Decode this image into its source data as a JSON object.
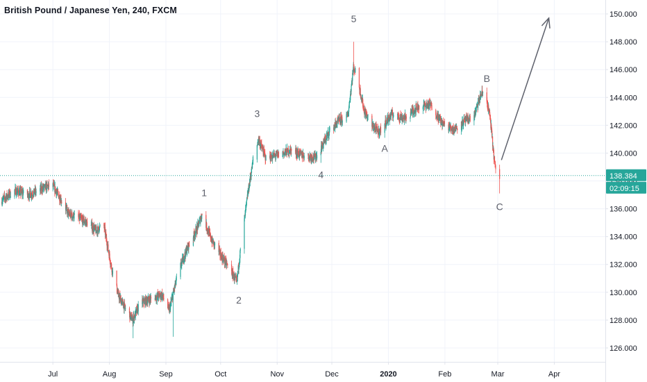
{
  "header": {
    "title": "British Pound / Japanese Yen, 240, FXCM"
  },
  "colors": {
    "up": "#26a69a",
    "down": "#ef5350",
    "grid": "#f0f3fa",
    "axis_line": "#e0e3eb",
    "last_price": "#26a69a",
    "arrow": "#5d606b",
    "label": "#5d606b"
  },
  "chart_data": {
    "type": "candlestick",
    "y_axis": {
      "ticks": [
        "126.000",
        "128.000",
        "130.000",
        "132.000",
        "134.000",
        "136.000",
        "138.000",
        "140.000",
        "142.000",
        "144.000",
        "146.000",
        "148.000",
        "150.000"
      ],
      "ylim": [
        125.0,
        151.0
      ]
    },
    "x_axis": {
      "ticks": [
        "Jul",
        "Aug",
        "Sep",
        "Oct",
        "Nov",
        "Dec",
        "2020",
        "Feb",
        "Mar",
        "Apr"
      ],
      "bold_ticks": [
        "2020"
      ],
      "tick_dates": [
        "2019-07-01",
        "2019-08-01",
        "2019-09-01",
        "2019-10-01",
        "2019-11-01",
        "2019-12-01",
        "2020-01-01",
        "2020-02-01",
        "2020-03-01",
        "2020-04-01"
      ],
      "xlim": [
        "2019-06-02",
        "2020-04-29"
      ]
    },
    "last_price": {
      "value": 138.384,
      "label": "138.384",
      "countdown": "02:09:15"
    },
    "price_path": [
      [
        "2019-06-02",
        136.5
      ],
      [
        "2019-06-10",
        137.3
      ],
      [
        "2019-06-18",
        137.0
      ],
      [
        "2019-06-26",
        137.5
      ],
      [
        "2019-07-01",
        137.7
      ],
      [
        "2019-07-05",
        136.8
      ],
      [
        "2019-07-10",
        135.6
      ],
      [
        "2019-07-16",
        135.3
      ],
      [
        "2019-07-21",
        134.9
      ],
      [
        "2019-07-25",
        134.4
      ],
      [
        "2019-07-29",
        134.9
      ],
      [
        "2019-08-02",
        132.0
      ],
      [
        "2019-08-06",
        129.8
      ],
      [
        "2019-08-10",
        128.8
      ],
      [
        "2019-08-14",
        128.0
      ],
      [
        "2019-08-18",
        129.2
      ],
      [
        "2019-08-25",
        129.6
      ],
      [
        "2019-08-30",
        129.8
      ],
      [
        "2019-09-03",
        128.7
      ],
      [
        "2019-09-08",
        131.5
      ],
      [
        "2019-09-13",
        133.2
      ],
      [
        "2019-09-18",
        134.5
      ],
      [
        "2019-09-21",
        135.6
      ],
      [
        "2019-09-26",
        133.8
      ],
      [
        "2019-10-02",
        132.5
      ],
      [
        "2019-10-07",
        131.5
      ],
      [
        "2019-10-10",
        130.7
      ],
      [
        "2019-10-12",
        133.0
      ],
      [
        "2019-10-16",
        137.0
      ],
      [
        "2019-10-19",
        139.5
      ],
      [
        "2019-10-22",
        141.0
      ],
      [
        "2019-10-26",
        139.6
      ],
      [
        "2019-11-02",
        139.9
      ],
      [
        "2019-11-09",
        140.2
      ],
      [
        "2019-11-16",
        139.8
      ],
      [
        "2019-11-22",
        139.7
      ],
      [
        "2019-11-25",
        140.3
      ],
      [
        "2019-11-30",
        141.6
      ],
      [
        "2019-12-05",
        142.3
      ],
      [
        "2019-12-10",
        142.7
      ],
      [
        "2019-12-13",
        146.2
      ],
      [
        "2019-12-15",
        145.5
      ],
      [
        "2019-12-19",
        143.0
      ],
      [
        "2019-12-23",
        142.0
      ],
      [
        "2019-12-27",
        141.5
      ],
      [
        "2020-01-03",
        142.8
      ],
      [
        "2020-01-10",
        142.5
      ],
      [
        "2020-01-17",
        143.3
      ],
      [
        "2020-01-24",
        143.5
      ],
      [
        "2020-01-31",
        142.1
      ],
      [
        "2020-02-06",
        141.7
      ],
      [
        "2020-02-12",
        142.3
      ],
      [
        "2020-02-17",
        142.6
      ],
      [
        "2020-02-21",
        144.2
      ],
      [
        "2020-02-23",
        144.5
      ],
      [
        "2020-02-26",
        142.5
      ],
      [
        "2020-02-28",
        139.8
      ],
      [
        "2020-03-01",
        137.6
      ],
      [
        "2020-03-02",
        138.3
      ]
    ],
    "extremes": [
      [
        "2019-07-01",
        137.9
      ],
      [
        "2019-08-14",
        126.7
      ],
      [
        "2019-09-05",
        126.8
      ],
      [
        "2019-09-21",
        135.9
      ],
      [
        "2019-10-10",
        130.6
      ],
      [
        "2019-10-20",
        141.4
      ],
      [
        "2019-11-25",
        139.3
      ],
      [
        "2019-12-13",
        148.0
      ],
      [
        "2019-12-30",
        141.1
      ],
      [
        "2020-02-23",
        144.9
      ],
      [
        "2020-03-02",
        137.1
      ]
    ],
    "wave_labels": [
      {
        "text": "1",
        "date": "2019-09-22",
        "price": 136.9
      },
      {
        "text": "2",
        "date": "2019-10-11",
        "price": 129.2
      },
      {
        "text": "3",
        "date": "2019-10-21",
        "price": 142.6
      },
      {
        "text": "4",
        "date": "2019-11-25",
        "price": 138.2
      },
      {
        "text": "5",
        "date": "2019-12-13",
        "price": 149.4
      },
      {
        "text": "A",
        "date": "2019-12-30",
        "price": 140.1
      },
      {
        "text": "B",
        "date": "2020-02-24",
        "price": 145.1
      },
      {
        "text": "C",
        "date": "2020-03-02",
        "price": 135.9
      }
    ],
    "projection_arrow": {
      "from": [
        "2020-03-03",
        139.5
      ],
      "to": [
        "2020-03-29",
        149.7
      ]
    }
  }
}
